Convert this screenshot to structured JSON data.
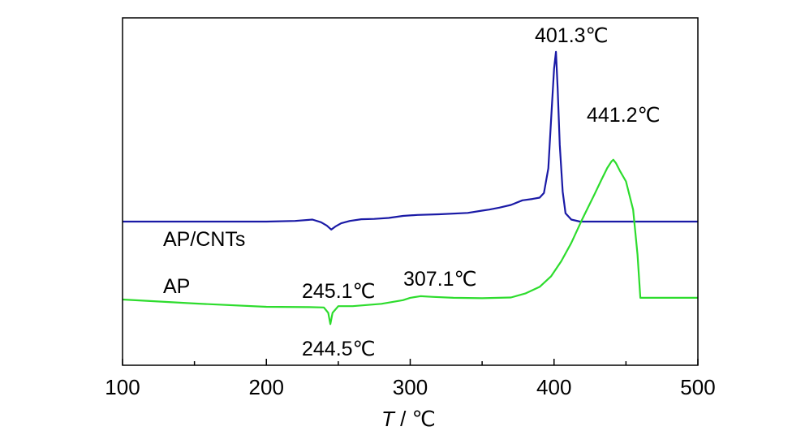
{
  "chart_data": {
    "type": "line",
    "xlabel_var": "T",
    "xlabel_sep": " / ",
    "xlabel_unit": "℃",
    "xlim": [
      100,
      500
    ],
    "xticks": [
      100,
      200,
      300,
      400,
      500
    ],
    "xtick_labels": [
      "100",
      "200",
      "300",
      "400",
      "500"
    ],
    "yaxis_ticks_shown": false,
    "grid": false,
    "series": [
      {
        "name": "AP/CNTs",
        "color": "#1a1aa6",
        "x": [
          100,
          200,
          220,
          232,
          238,
          242,
          245.1,
          248,
          252,
          258,
          266,
          275,
          285,
          295,
          305,
          320,
          340,
          350,
          355,
          362,
          370,
          378,
          385,
          390,
          393,
          396,
          398,
          400,
          401.3,
          402.5,
          404,
          406,
          408,
          412,
          418,
          430,
          450,
          500
        ],
        "y": [
          1.0,
          1.0,
          1.02,
          1.06,
          0.98,
          0.88,
          0.76,
          0.85,
          0.95,
          1.02,
          1.07,
          1.08,
          1.11,
          1.17,
          1.2,
          1.22,
          1.26,
          1.33,
          1.36,
          1.42,
          1.5,
          1.64,
          1.68,
          1.72,
          1.86,
          2.6,
          4.1,
          5.6,
          6.1,
          5.0,
          3.3,
          1.9,
          1.25,
          1.06,
          1.0,
          1.0,
          1.0,
          1.0
        ]
      },
      {
        "name": "AP",
        "color": "#2ddc2d",
        "x": [
          100,
          150,
          200,
          230,
          240,
          243,
          244.5,
          246,
          250,
          260,
          280,
          295,
          300,
          307.1,
          315,
          330,
          350,
          370,
          380,
          390,
          398,
          405,
          412,
          420,
          428,
          433,
          437,
          440,
          441.2,
          443,
          446,
          450,
          455,
          458,
          460,
          470,
          500
        ],
        "y": [
          0.0,
          -0.12,
          -0.22,
          -0.23,
          -0.24,
          -0.4,
          -0.74,
          -0.4,
          -0.2,
          -0.2,
          -0.13,
          -0.02,
          0.05,
          0.1,
          0.08,
          0.05,
          0.04,
          0.06,
          0.18,
          0.38,
          0.7,
          1.15,
          1.7,
          2.45,
          3.15,
          3.6,
          3.95,
          4.15,
          4.2,
          4.1,
          3.85,
          3.55,
          2.7,
          1.35,
          0.05,
          0.05,
          0.05
        ]
      }
    ],
    "annotations": [
      {
        "text": "401.3℃",
        "series": "AP/CNTs"
      },
      {
        "text": "441.2℃",
        "series": "AP"
      },
      {
        "text": "245.1℃",
        "series": "AP/CNTs"
      },
      {
        "text": "307.1℃",
        "series": "AP"
      },
      {
        "text": "244.5℃",
        "series": "AP"
      }
    ],
    "curve_labels": [
      "AP/CNTs",
      "AP"
    ]
  }
}
